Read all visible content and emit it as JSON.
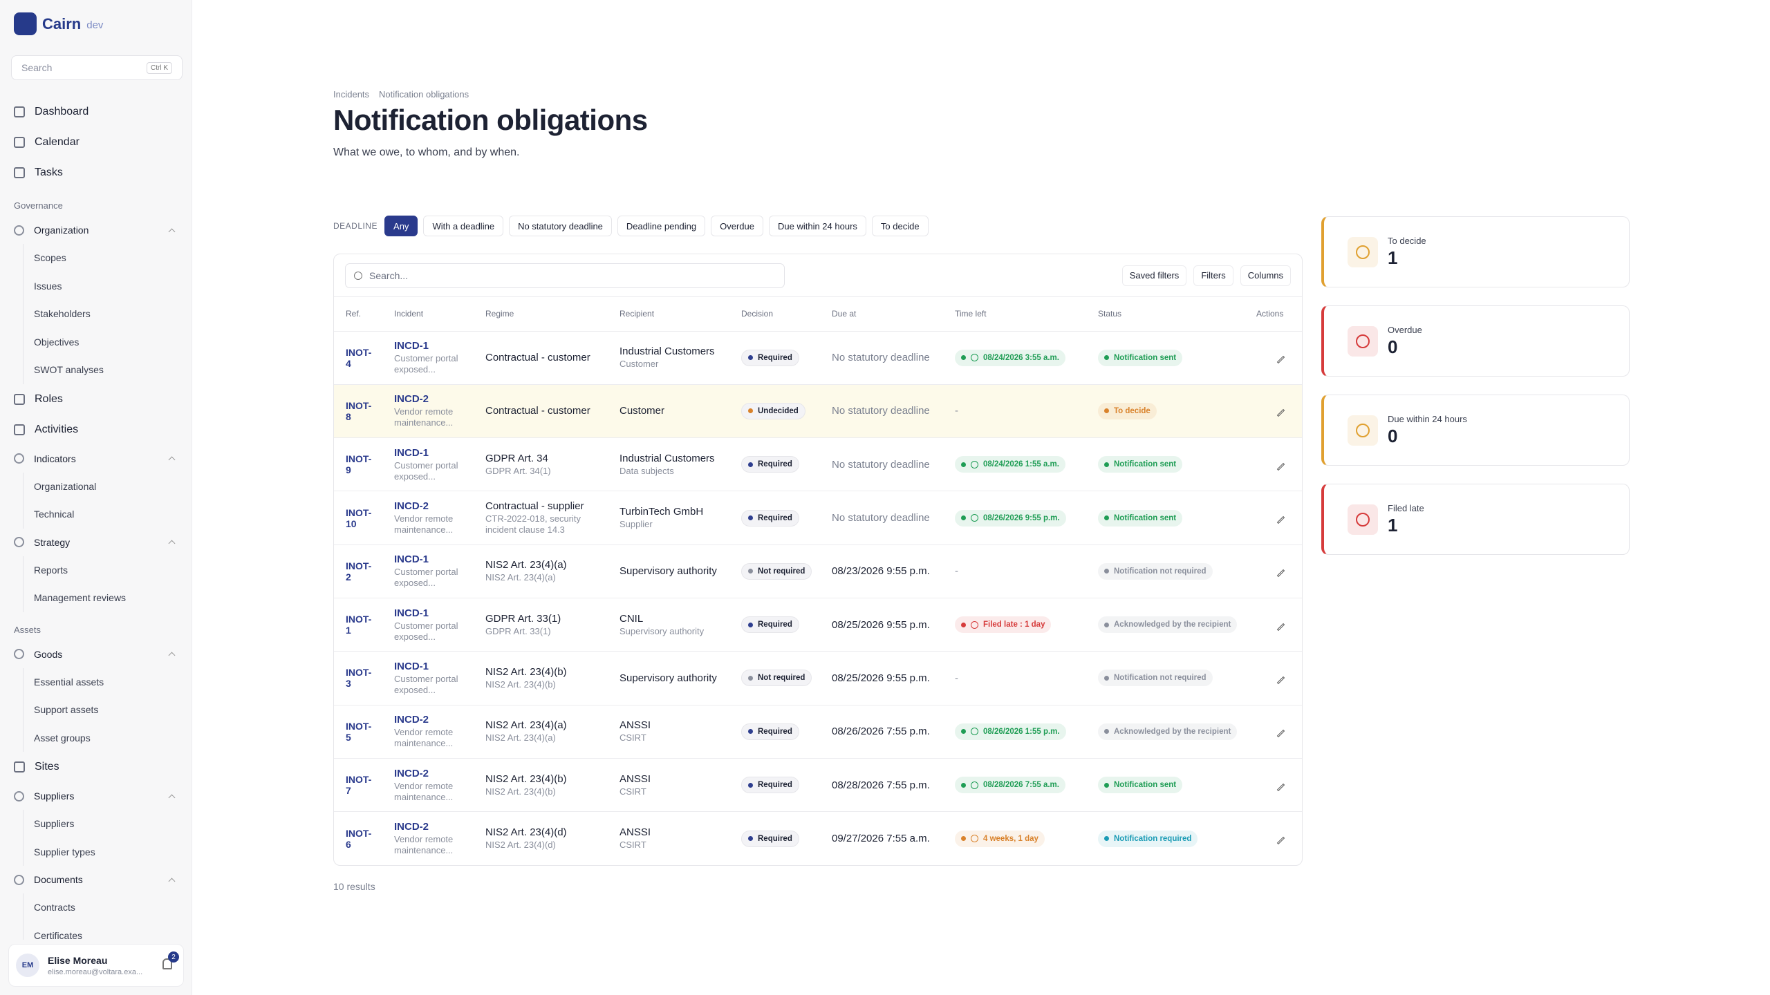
{
  "app": {
    "name": "Cairn",
    "env": "dev"
  },
  "search": {
    "placeholder": "Search",
    "shortcut": "Ctrl K"
  },
  "nav": {
    "main": [
      "Dashboard",
      "Calendar",
      "Tasks"
    ],
    "sections": [
      {
        "title": "Governance",
        "items": [
          {
            "label": "Organization",
            "children": [
              "Scopes",
              "Issues",
              "Stakeholders",
              "Objectives",
              "SWOT analyses"
            ]
          },
          {
            "label": "Roles"
          },
          {
            "label": "Activities"
          },
          {
            "label": "Indicators",
            "children": [
              "Organizational",
              "Technical"
            ]
          },
          {
            "label": "Strategy",
            "children": [
              "Reports",
              "Management reviews"
            ]
          }
        ]
      },
      {
        "title": "Assets",
        "items": [
          {
            "label": "Goods",
            "children": [
              "Essential assets",
              "Support assets",
              "Asset groups"
            ]
          },
          {
            "label": "Sites"
          },
          {
            "label": "Suppliers",
            "children": [
              "Suppliers",
              "Supplier types"
            ]
          },
          {
            "label": "Documents",
            "children": [
              "Contracts",
              "Certificates"
            ]
          }
        ]
      }
    ]
  },
  "user": {
    "initials": "EM",
    "name": "Elise Moreau",
    "email": "elise.moreau@voltara.exa...",
    "notifications": 2
  },
  "breadcrumb": [
    "Incidents",
    "Notification obligations"
  ],
  "title": "Notification obligations",
  "subtitle": "What we owe, to whom, and by when.",
  "filter": {
    "label": "DEADLINE",
    "options": [
      "Any",
      "With a deadline",
      "No statutory deadline",
      "Deadline pending",
      "Overdue",
      "Due within 24 hours",
      "To decide"
    ],
    "active": 0
  },
  "table": {
    "search_placeholder": "Search...",
    "tools": [
      "Saved filters",
      "Filters",
      "Columns"
    ],
    "columns": [
      "Ref.",
      "Incident",
      "Regime",
      "Recipient",
      "Decision",
      "Due at",
      "Time left",
      "Status",
      "Actions"
    ],
    "rows": [
      {
        "ref": "INOT-4",
        "incident": "INCD-1",
        "incident_desc": "Customer portal exposed...",
        "regime": "Contractual - customer",
        "regime_sub": null,
        "recipient": "Industrial Customers",
        "recipient_sub": "Customer",
        "decision": {
          "label": "Required",
          "color": "#2f3f8f"
        },
        "due": {
          "label": "No statutory deadline",
          "color": "#7b8190"
        },
        "time_left": {
          "label": "08/24/2026 3:55 a.m.",
          "color": "#1f9d55"
        },
        "status": {
          "label": "Notification sent",
          "color": "#1f9d55"
        }
      },
      {
        "ref": "INOT-8",
        "incident": "INCD-2",
        "incident_desc": "Vendor remote maintenance...",
        "regime": "Contractual - customer",
        "regime_sub": null,
        "recipient": "Customer",
        "recipient_sub": null,
        "decision": {
          "label": "Undecided",
          "color": "#d9822b"
        },
        "due": {
          "label": "No statutory deadline",
          "color": "#7b8190"
        },
        "time_left": {
          "label": "-",
          "color": null
        },
        "status": {
          "label": "To decide",
          "color": "#d9822b"
        },
        "highlighted": true
      },
      {
        "ref": "INOT-9",
        "incident": "INCD-1",
        "incident_desc": "Customer portal exposed...",
        "regime": "GDPR Art. 34",
        "regime_sub": "GDPR Art. 34(1)",
        "recipient": "Industrial Customers",
        "recipient_sub": "Data subjects",
        "decision": {
          "label": "Required",
          "color": "#2f3f8f"
        },
        "due": {
          "label": "No statutory deadline",
          "color": "#7b8190"
        },
        "time_left": {
          "label": "08/24/2026 1:55 a.m.",
          "color": "#1f9d55"
        },
        "status": {
          "label": "Notification sent",
          "color": "#1f9d55"
        }
      },
      {
        "ref": "INOT-10",
        "incident": "INCD-2",
        "incident_desc": "Vendor remote maintenance...",
        "regime": "Contractual - supplier",
        "regime_sub": "CTR-2022-018, security incident clause 14.3",
        "recipient": "TurbinTech GmbH",
        "recipient_sub": "Supplier",
        "decision": {
          "label": "Required",
          "color": "#2f3f8f"
        },
        "due": {
          "label": "No statutory deadline",
          "color": "#7b8190"
        },
        "time_left": {
          "label": "08/26/2026 9:55 p.m.",
          "color": "#1f9d55"
        },
        "status": {
          "label": "Notification sent",
          "color": "#1f9d55"
        }
      },
      {
        "ref": "INOT-2",
        "incident": "INCD-1",
        "incident_desc": "Customer portal exposed...",
        "regime": "NIS2 Art. 23(4)(a)",
        "regime_sub": "NIS2 Art. 23(4)(a)",
        "recipient": "Supervisory authority",
        "recipient_sub": null,
        "decision": {
          "label": "Not required",
          "color": "#8a8f9c"
        },
        "due": {
          "label": "08/23/2026 9:55 p.m.",
          "color": "#1d2233"
        },
        "time_left": {
          "label": "-",
          "color": null
        },
        "status": {
          "label": "Notification not required",
          "color": "#8a8f9c"
        }
      },
      {
        "ref": "INOT-1",
        "incident": "INCD-1",
        "incident_desc": "Customer portal exposed...",
        "regime": "GDPR Art. 33(1)",
        "regime_sub": "GDPR Art. 33(1)",
        "recipient": "CNIL",
        "recipient_sub": "Supervisory authority",
        "decision": {
          "label": "Required",
          "color": "#2f3f8f"
        },
        "due": {
          "label": "08/25/2026 9:55 p.m.",
          "color": "#1d2233"
        },
        "time_left": {
          "label": "Filed late : 1 day",
          "color": "#d63b3b"
        },
        "status": {
          "label": "Acknowledged by the recipient",
          "color": "#8a8f9c"
        }
      },
      {
        "ref": "INOT-3",
        "incident": "INCD-1",
        "incident_desc": "Customer portal exposed...",
        "regime": "NIS2 Art. 23(4)(b)",
        "regime_sub": "NIS2 Art. 23(4)(b)",
        "recipient": "Supervisory authority",
        "recipient_sub": null,
        "decision": {
          "label": "Not required",
          "color": "#8a8f9c"
        },
        "due": {
          "label": "08/25/2026 9:55 p.m.",
          "color": "#1d2233"
        },
        "time_left": {
          "label": "-",
          "color": null
        },
        "status": {
          "label": "Notification not required",
          "color": "#8a8f9c"
        }
      },
      {
        "ref": "INOT-5",
        "incident": "INCD-2",
        "incident_desc": "Vendor remote maintenance...",
        "regime": "NIS2 Art. 23(4)(a)",
        "regime_sub": "NIS2 Art. 23(4)(a)",
        "recipient": "ANSSI",
        "recipient_sub": "CSIRT",
        "decision": {
          "label": "Required",
          "color": "#2f3f8f"
        },
        "due": {
          "label": "08/26/2026 7:55 p.m.",
          "color": "#1d2233"
        },
        "time_left": {
          "label": "08/26/2026 1:55 p.m.",
          "color": "#1f9d55"
        },
        "status": {
          "label": "Acknowledged by the recipient",
          "color": "#8a8f9c"
        }
      },
      {
        "ref": "INOT-7",
        "incident": "INCD-2",
        "incident_desc": "Vendor remote maintenance...",
        "regime": "NIS2 Art. 23(4)(b)",
        "regime_sub": "NIS2 Art. 23(4)(b)",
        "recipient": "ANSSI",
        "recipient_sub": "CSIRT",
        "decision": {
          "label": "Required",
          "color": "#2f3f8f"
        },
        "due": {
          "label": "08/28/2026 7:55 p.m.",
          "color": "#1d2233"
        },
        "time_left": {
          "label": "08/28/2026 7:55 a.m.",
          "color": "#1f9d55"
        },
        "status": {
          "label": "Notification sent",
          "color": "#1f9d55"
        }
      },
      {
        "ref": "INOT-6",
        "incident": "INCD-2",
        "incident_desc": "Vendor remote maintenance...",
        "regime": "NIS2 Art. 23(4)(d)",
        "regime_sub": "NIS2 Art. 23(4)(d)",
        "recipient": "ANSSI",
        "recipient_sub": "CSIRT",
        "decision": {
          "label": "Required",
          "color": "#2f3f8f"
        },
        "due": {
          "label": "09/27/2026 7:55 a.m.",
          "color": "#1d2233"
        },
        "time_left": {
          "label": "4 weeks, 1 day",
          "color": "#d9822b"
        },
        "status": {
          "label": "Notification required",
          "color": "#1a9bb5"
        }
      }
    ],
    "results": "10 results"
  },
  "stats": [
    {
      "label": "To decide",
      "value": 1,
      "color": "#e0a030"
    },
    {
      "label": "Overdue",
      "value": 0,
      "color": "#d63b3b"
    },
    {
      "label": "Due within 24 hours",
      "value": 0,
      "color": "#e0a030"
    },
    {
      "label": "Filed late",
      "value": 1,
      "color": "#d63b3b"
    }
  ]
}
